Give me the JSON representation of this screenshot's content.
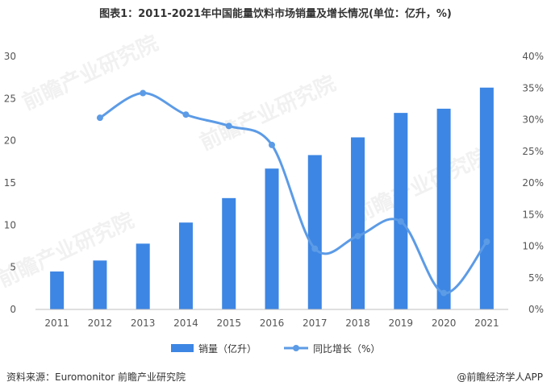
{
  "chart_data": {
    "type": "bar",
    "title": "图表1：2011-2021年中国能量饮料市场销量及增长情况(单位：亿升，%)",
    "categories": [
      "2011",
      "2012",
      "2013",
      "2014",
      "2015",
      "2016",
      "2017",
      "2018",
      "2019",
      "2020",
      "2021"
    ],
    "series": [
      {
        "name": "销量（亿升）",
        "type": "bar",
        "axis": "left",
        "values": [
          4.5,
          5.8,
          7.8,
          10.3,
          13.2,
          16.7,
          18.3,
          20.4,
          23.3,
          23.8,
          26.3
        ]
      },
      {
        "name": "同比增长（%）",
        "type": "line",
        "axis": "right",
        "values": [
          null,
          30.3,
          34.2,
          30.8,
          29.0,
          26.0,
          9.6,
          11.6,
          13.9,
          2.6,
          10.7
        ]
      }
    ],
    "ylim_left": [
      0,
      30
    ],
    "yticks_left": [
      "0",
      "5",
      "10",
      "15",
      "20",
      "25",
      "30"
    ],
    "ylim_right": [
      0,
      40
    ],
    "yticks_right": [
      "0%",
      "5%",
      "10%",
      "15%",
      "20%",
      "25%",
      "30%",
      "35%",
      "40%"
    ],
    "colors": {
      "bar": "#3d86e3",
      "line": "#5c9be6"
    },
    "legend_position": "bottom"
  },
  "footer": {
    "source": "资料来源：Euromonitor 前瞻产业研究院",
    "brand": "@前瞻经济学人APP"
  },
  "watermark": {
    "text": "前瞻产业研究院"
  }
}
